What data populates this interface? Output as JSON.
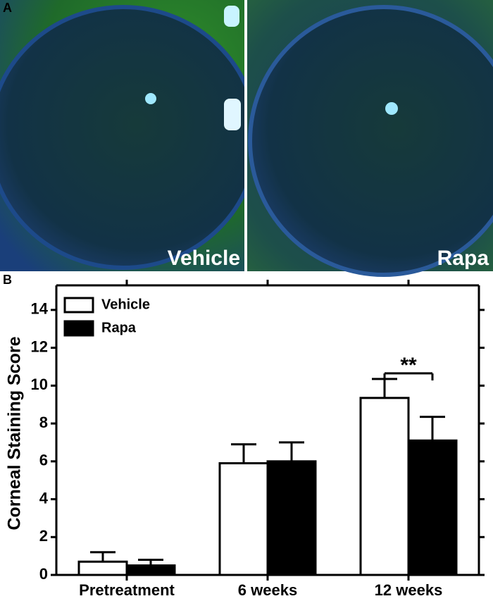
{
  "panel_a": {
    "label": "A",
    "images": [
      {
        "label": "Vehicle"
      },
      {
        "label": "Rapa"
      }
    ]
  },
  "chart_data": {
    "type": "bar",
    "panel_label": "B",
    "y_label": "Corneal Staining  Score",
    "categories": [
      "Pretreatment",
      "6 weeks",
      "12 weeks"
    ],
    "series": [
      {
        "name": "Vehicle",
        "color": "#ffffff",
        "values": [
          0.7,
          5.9,
          9.35
        ],
        "errors": [
          0.5,
          1.0,
          1.0
        ]
      },
      {
        "name": "Rapa",
        "color": "#000000",
        "values": [
          0.5,
          6.0,
          7.1
        ],
        "errors": [
          0.3,
          1.0,
          1.25
        ]
      }
    ],
    "ylim": [
      0,
      15
    ],
    "yticks": [
      0,
      2,
      4,
      6,
      8,
      10,
      12,
      14
    ],
    "legend": "top-left",
    "annotations": [
      {
        "text": "**"
      }
    ]
  }
}
